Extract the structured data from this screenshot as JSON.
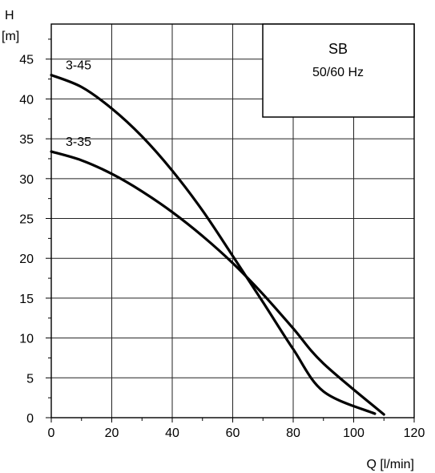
{
  "chart_data": {
    "type": "line",
    "xlabel": "Q [l/min]",
    "ylabel_top": "H",
    "ylabel_unit": "[m]",
    "xlim": [
      0,
      120
    ],
    "ylim": [
      0,
      48
    ],
    "xticks": [
      0,
      20,
      40,
      60,
      80,
      100,
      120
    ],
    "yticks": [
      0,
      5,
      10,
      15,
      20,
      25,
      30,
      35,
      40,
      45
    ],
    "grid": true,
    "legend_box": {
      "title": "SB",
      "subtitle": "50/60  Hz",
      "placement": "top-right"
    },
    "series": [
      {
        "name": "3-45",
        "color": "#000000",
        "points": [
          [
            0,
            43.0
          ],
          [
            10,
            41.5
          ],
          [
            20,
            38.8
          ],
          [
            30,
            35.3
          ],
          [
            40,
            31.0
          ],
          [
            50,
            26.0
          ],
          [
            60,
            20.3
          ],
          [
            70,
            14.5
          ],
          [
            80,
            8.6
          ],
          [
            90,
            3.3
          ],
          [
            107,
            0.5
          ]
        ]
      },
      {
        "name": "3-35",
        "color": "#000000",
        "points": [
          [
            0,
            33.4
          ],
          [
            10,
            32.3
          ],
          [
            20,
            30.6
          ],
          [
            30,
            28.4
          ],
          [
            40,
            25.8
          ],
          [
            50,
            22.8
          ],
          [
            60,
            19.4
          ],
          [
            70,
            15.5
          ],
          [
            80,
            11.2
          ],
          [
            90,
            6.8
          ],
          [
            110,
            0.4
          ]
        ]
      }
    ]
  }
}
